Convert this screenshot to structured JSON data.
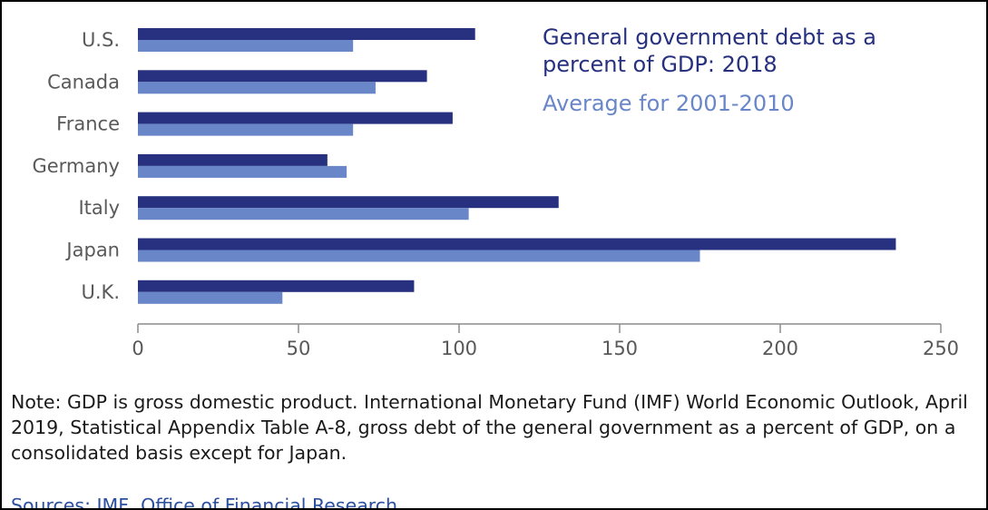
{
  "chart_data": {
    "type": "bar",
    "orientation": "horizontal",
    "categories": [
      "U.S.",
      "Canada",
      "France",
      "Germany",
      "Italy",
      "Japan",
      "U.K."
    ],
    "series": [
      {
        "name": "General government debt as a percent of GDP: 2018",
        "values": [
          105,
          90,
          98,
          59,
          131,
          236,
          86
        ],
        "color": "#27317f"
      },
      {
        "name": "Average for 2001-2010",
        "values": [
          67,
          74,
          67,
          65,
          103,
          175,
          45
        ],
        "color": "#6886c8"
      }
    ],
    "xlim": [
      0,
      250
    ],
    "xticks": [
      "0",
      "50",
      "100",
      "150",
      "200",
      "250"
    ],
    "grid": false,
    "legend_position": "top-right"
  },
  "legend": {
    "line1": "General government debt as a",
    "line2": "percent of GDP: 2018",
    "line3": "Average for 2001-2010"
  },
  "note": "Note: GDP is gross domestic product. International Monetary Fund (IMF) World Economic Outlook, April 2019, Statistical Appendix Table A-8, gross debt of the general government as a percent of GDP, on a consolidated basis except for Japan.",
  "sources": "Sources: IMF, Office of Financial Research",
  "colors": {
    "axis": "#8c8c8c",
    "label_text": "#595959",
    "sources_text": "#2b4f9e"
  }
}
